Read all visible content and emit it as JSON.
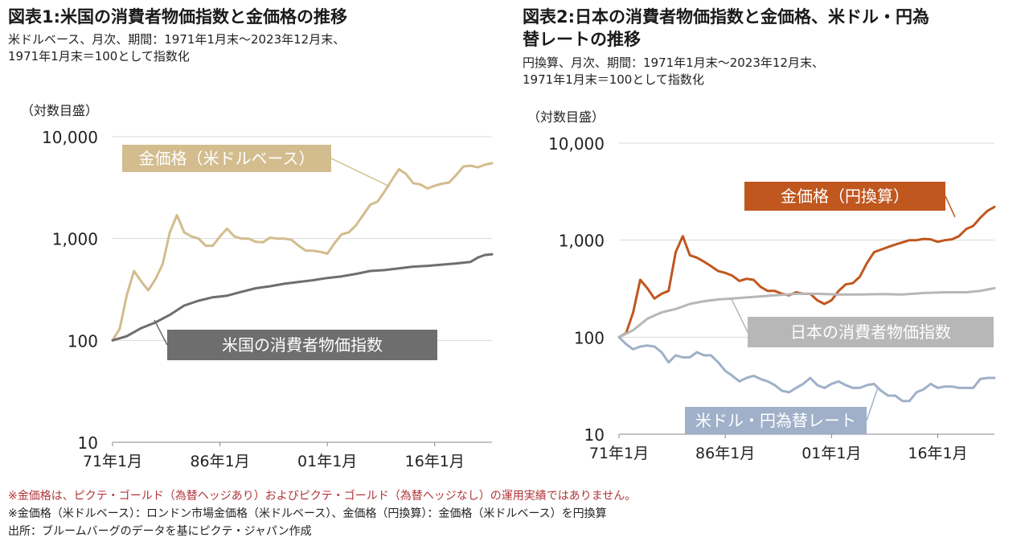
{
  "colors": {
    "gold_usd": "#d3bc8e",
    "us_cpi": "#6e6e6e",
    "gold_jpy": "#c0571f",
    "jp_cpi": "#b7b7b7",
    "usdjpy": "#9fb0c8",
    "grid": "#d9d9d9",
    "note_red": "#b0353a"
  },
  "chart1": {
    "title": "図表1:米国の消費者物価指数と金価格の推移",
    "subtitle_lines": [
      "米ドルベース、月次、期間：1971年1月末～2023年12月末、",
      "1971年1月末＝100として指数化"
    ],
    "scale_note": "（対数目盛）"
  },
  "chart2": {
    "title_lines": [
      "図表2:日本の消費者物価指数と金価格、米ドル・円為",
      "替レートの推移"
    ],
    "subtitle_lines": [
      "円換算、月次、期間：1971年1月末～2023年12月末、",
      "1971年1月末＝100として指数化"
    ],
    "scale_note": "（対数目盛）"
  },
  "chart_data": [
    {
      "type": "line",
      "title": "図表1:米国の消費者物価指数と金価格の推移",
      "y_scale": "log",
      "ylim": [
        10,
        10000
      ],
      "y_ticks": [
        "10",
        "100",
        "1,000",
        "10,000"
      ],
      "x_ticks": [
        "71年1月",
        "86年1月",
        "01年1月",
        "16年1月"
      ],
      "x_range": [
        1971,
        2024
      ],
      "grid": "horizontal",
      "series": [
        {
          "name": "金価格（米ドルベース）",
          "color_key": "gold_usd",
          "x": [
            1971,
            1972,
            1973,
            1974,
            1975,
            1976,
            1977,
            1978,
            1979,
            1980,
            1981,
            1982,
            1983,
            1984,
            1985,
            1986,
            1987,
            1988,
            1989,
            1990,
            1991,
            1992,
            1993,
            1994,
            1995,
            1996,
            1997,
            1998,
            1999,
            2000,
            2001,
            2002,
            2003,
            2004,
            2005,
            2006,
            2007,
            2008,
            2009,
            2010,
            2011,
            2012,
            2013,
            2014,
            2015,
            2016,
            2017,
            2018,
            2019,
            2020,
            2021,
            2022,
            2023,
            2024
          ],
          "values": [
            100,
            130,
            280,
            480,
            380,
            310,
            400,
            560,
            1150,
            1700,
            1150,
            1050,
            1000,
            850,
            850,
            1050,
            1250,
            1050,
            1000,
            1000,
            930,
            920,
            1020,
            1000,
            1000,
            970,
            850,
            760,
            760,
            740,
            710,
            900,
            1100,
            1150,
            1350,
            1700,
            2150,
            2300,
            2900,
            3750,
            4800,
            4300,
            3500,
            3400,
            3100,
            3300,
            3450,
            3550,
            4200,
            5100,
            5200,
            5000,
            5300,
            5500
          ]
        },
        {
          "name": "米国の消費者物価指数",
          "color_key": "us_cpi",
          "x": [
            1971,
            1973,
            1975,
            1977,
            1979,
            1981,
            1983,
            1985,
            1987,
            1989,
            1991,
            1993,
            1995,
            1997,
            1999,
            2001,
            2003,
            2005,
            2007,
            2009,
            2011,
            2013,
            2015,
            2017,
            2019,
            2021,
            2022,
            2023,
            2024
          ],
          "values": [
            100,
            110,
            132,
            150,
            178,
            220,
            245,
            265,
            275,
            300,
            325,
            340,
            360,
            375,
            390,
            410,
            425,
            450,
            480,
            490,
            510,
            530,
            540,
            555,
            570,
            590,
            650,
            690,
            700
          ]
        }
      ]
    },
    {
      "type": "line",
      "title": "図表2:日本の消費者物価指数と金価格、米ドル・円為替レートの推移",
      "y_scale": "log",
      "ylim": [
        10,
        10000
      ],
      "y_ticks": [
        "10",
        "100",
        "1,000",
        "10,000"
      ],
      "x_ticks": [
        "71年1月",
        "86年1月",
        "01年1月",
        "16年1月"
      ],
      "x_range": [
        1971,
        2024
      ],
      "grid": "horizontal",
      "series": [
        {
          "name": "金価格（円換算）",
          "color_key": "gold_jpy",
          "x": [
            1971,
            1972,
            1973,
            1974,
            1975,
            1976,
            1977,
            1978,
            1979,
            1980,
            1981,
            1982,
            1983,
            1984,
            1985,
            1986,
            1987,
            1988,
            1989,
            1990,
            1991,
            1992,
            1993,
            1994,
            1995,
            1996,
            1997,
            1998,
            1999,
            2000,
            2001,
            2002,
            2003,
            2004,
            2005,
            2006,
            2007,
            2008,
            2009,
            2010,
            2011,
            2012,
            2013,
            2014,
            2015,
            2016,
            2017,
            2018,
            2019,
            2020,
            2021,
            2022,
            2023,
            2024
          ],
          "values": [
            100,
            110,
            180,
            390,
            320,
            250,
            280,
            300,
            750,
            1100,
            700,
            660,
            600,
            540,
            480,
            460,
            430,
            380,
            400,
            390,
            330,
            300,
            300,
            280,
            270,
            290,
            280,
            280,
            240,
            220,
            240,
            300,
            350,
            360,
            420,
            580,
            750,
            800,
            850,
            900,
            950,
            1000,
            1000,
            1030,
            1020,
            960,
            1000,
            1020,
            1100,
            1300,
            1400,
            1700,
            2000,
            2200
          ]
        },
        {
          "name": "日本の消費者物価指数",
          "color_key": "jp_cpi",
          "x": [
            1971,
            1973,
            1975,
            1977,
            1979,
            1981,
            1983,
            1985,
            1987,
            1990,
            1993,
            1996,
            1999,
            2002,
            2005,
            2008,
            2011,
            2014,
            2017,
            2020,
            2022,
            2024
          ],
          "values": [
            100,
            118,
            155,
            180,
            195,
            220,
            235,
            245,
            250,
            260,
            270,
            280,
            280,
            275,
            275,
            278,
            275,
            285,
            290,
            290,
            300,
            320
          ]
        },
        {
          "name": "米ドル・円為替レート",
          "color_key": "usdjpy",
          "x": [
            1971,
            1972,
            1973,
            1974,
            1975,
            1976,
            1977,
            1978,
            1979,
            1980,
            1981,
            1982,
            1983,
            1984,
            1985,
            1986,
            1987,
            1988,
            1989,
            1990,
            1991,
            1992,
            1993,
            1994,
            1995,
            1996,
            1997,
            1998,
            1999,
            2000,
            2001,
            2002,
            2003,
            2004,
            2005,
            2006,
            2007,
            2008,
            2009,
            2010,
            2011,
            2012,
            2013,
            2014,
            2015,
            2016,
            2017,
            2018,
            2019,
            2020,
            2021,
            2022,
            2023,
            2024
          ],
          "values": [
            100,
            85,
            75,
            80,
            82,
            80,
            70,
            55,
            65,
            62,
            62,
            70,
            65,
            65,
            55,
            45,
            40,
            35,
            38,
            40,
            37,
            35,
            32,
            28,
            27,
            30,
            33,
            38,
            32,
            30,
            33,
            35,
            32,
            30,
            30,
            32,
            33,
            28,
            25,
            25,
            22,
            22,
            27,
            29,
            33,
            30,
            31,
            31,
            30,
            30,
            30,
            37,
            38,
            38
          ]
        }
      ]
    }
  ],
  "labels": {
    "gold_usd": "金価格（米ドルベース）",
    "us_cpi": "米国の消費者物価指数",
    "gold_jpy": "金価格（円換算）",
    "jp_cpi": "日本の消費者物価指数",
    "usdjpy": "米ドル・円為替レート"
  },
  "notes": {
    "red": "※金価格は、ピクテ・ゴールド（為替ヘッジあり）およびピクテ・ゴールド（為替ヘッジなし）の運用実績ではありません。",
    "line2": "※金価格（米ドルベース）：ロンドン市場金価格（米ドルベース）、金価格（円換算）：金価格（米ドルベース）を円換算",
    "source": "出所：ブルームバーグのデータを基にピクテ・ジャパン作成"
  }
}
